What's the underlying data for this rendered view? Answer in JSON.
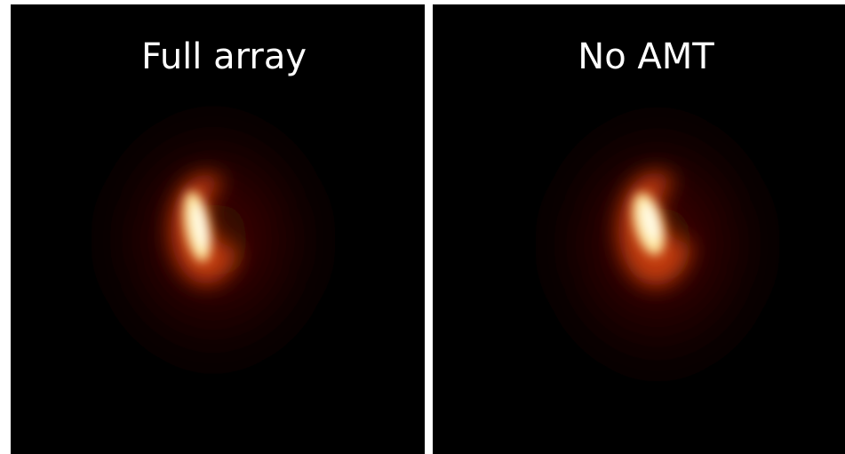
{
  "panels": [
    {
      "label": "Full array"
    },
    {
      "label": "No AMT"
    }
  ]
}
